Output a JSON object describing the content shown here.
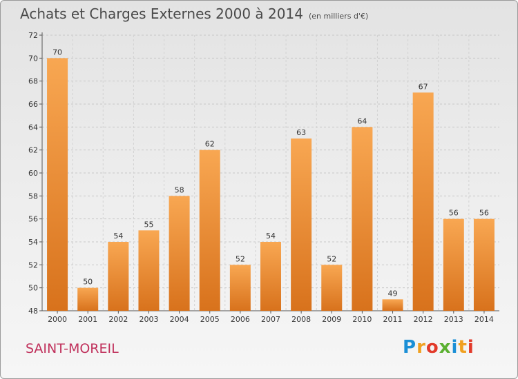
{
  "title": "Achats et Charges Externes 2000 à 2014",
  "unit": "(en milliers d'€)",
  "town": "SAINT-MOREIL",
  "logo": {
    "letters": [
      "P",
      "r",
      "o",
      "x",
      "i",
      "t",
      "i"
    ],
    "colors": [
      "#1b8fd6",
      "#f0a020",
      "#e23a2a",
      "#5ab030",
      "#1b8fd6",
      "#f0a020",
      "#e23a2a"
    ]
  },
  "colors": {
    "bar_top": "#f8a752",
    "bar_bottom": "#d8721c",
    "title": "#4a4a4a",
    "town": "#c0315c"
  },
  "chart_data": {
    "type": "bar",
    "title": "Achats et Charges Externes 2000 à 2014",
    "xlabel": "",
    "ylabel": "",
    "categories": [
      "2000",
      "2001",
      "2002",
      "2003",
      "2004",
      "2005",
      "2006",
      "2007",
      "2008",
      "2009",
      "2010",
      "2011",
      "2012",
      "2013",
      "2014"
    ],
    "values": [
      70,
      50,
      54,
      55,
      58,
      62,
      52,
      54,
      63,
      52,
      64,
      49,
      67,
      56,
      56
    ],
    "ylim": [
      48,
      72
    ],
    "yticks": [
      48,
      50,
      52,
      54,
      56,
      58,
      60,
      62,
      64,
      66,
      68,
      70,
      72
    ],
    "grid": true
  }
}
